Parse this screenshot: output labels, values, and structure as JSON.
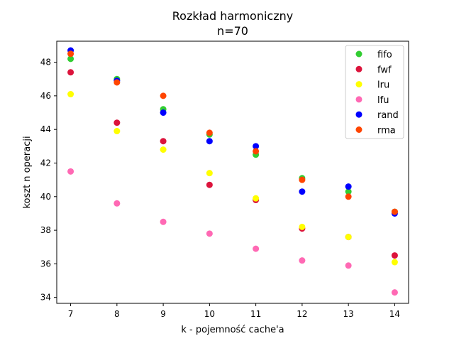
{
  "chart_data": {
    "type": "scatter",
    "title": "Rozkład harmoniczny",
    "subtitle": "n=70",
    "xlabel": "k - pojemność cache'a",
    "ylabel": "koszt n operacji",
    "x": [
      7,
      8,
      9,
      10,
      11,
      12,
      13,
      14
    ],
    "xlim": [
      6.7,
      14.3
    ],
    "ylim": [
      33.65,
      49.25
    ],
    "xticks": [
      "7",
      "8",
      "9",
      "10",
      "11",
      "12",
      "13",
      "14"
    ],
    "yticks": [
      "34",
      "36",
      "38",
      "40",
      "42",
      "44",
      "46",
      "48"
    ],
    "grid": false,
    "legend_position": "top-right",
    "series": [
      {
        "name": "fifo",
        "color": "#32cd32",
        "values": [
          48.2,
          47.0,
          45.2,
          43.7,
          42.5,
          41.1,
          40.3,
          39.1
        ]
      },
      {
        "name": "fwf",
        "color": "#dc143c",
        "values": [
          47.4,
          44.4,
          43.3,
          40.7,
          39.8,
          38.1,
          37.6,
          36.5
        ]
      },
      {
        "name": "lru",
        "color": "#ffff00",
        "values": [
          46.1,
          43.9,
          42.8,
          41.4,
          39.9,
          38.2,
          37.6,
          36.1
        ]
      },
      {
        "name": "lfu",
        "color": "#ff69b4",
        "values": [
          41.5,
          39.6,
          38.5,
          37.8,
          36.9,
          36.2,
          35.9,
          34.3
        ]
      },
      {
        "name": "rand",
        "color": "#0000ff",
        "values": [
          48.7,
          46.9,
          45.0,
          43.3,
          43.0,
          40.3,
          40.6,
          39.0
        ]
      },
      {
        "name": "rma",
        "color": "#ff4500",
        "values": [
          48.5,
          46.8,
          46.0,
          43.8,
          42.7,
          41.0,
          40.0,
          39.1
        ]
      }
    ]
  }
}
